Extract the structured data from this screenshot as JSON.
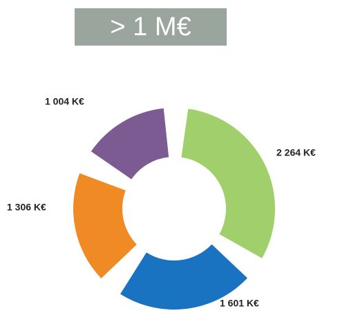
{
  "chart_data": {
    "type": "donut",
    "title": "> 1 M€",
    "categories": [
      null,
      null,
      null,
      null
    ],
    "values": [
      2264,
      1601,
      1306,
      1004
    ],
    "value_labels": [
      "2 264 K€",
      "1 601 K€",
      "1 306 K€",
      "1 004 K€"
    ],
    "colors": [
      "#a1cf6b",
      "#1a73c0",
      "#f08a24",
      "#7b5b91"
    ]
  }
}
